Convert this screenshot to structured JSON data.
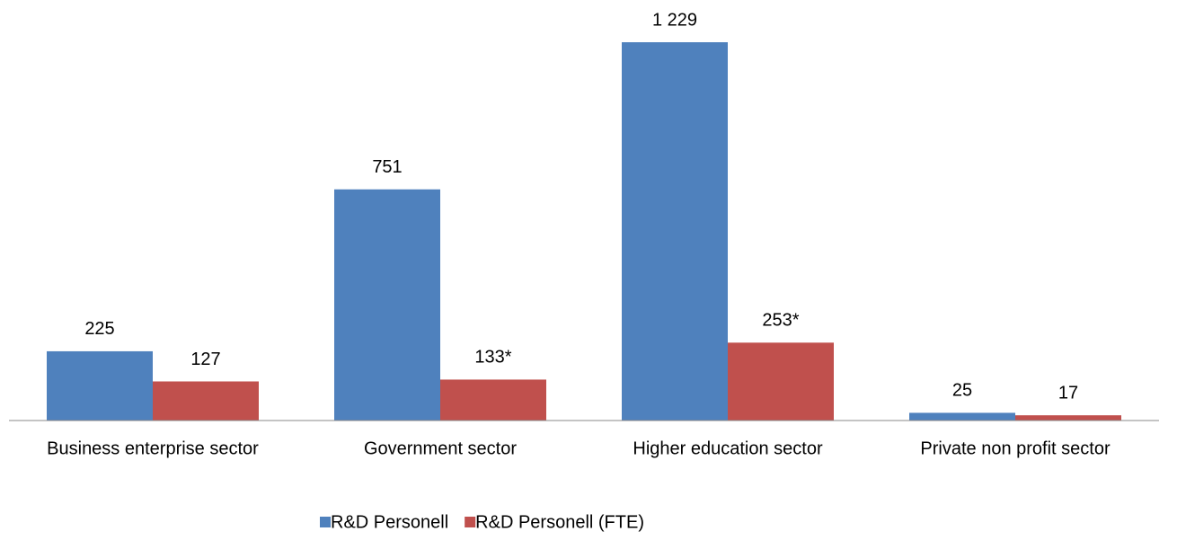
{
  "chart_data": {
    "type": "bar",
    "categories": [
      "Business enterprise sector",
      "Government sector",
      "Higher education sector",
      "Private non profit sector"
    ],
    "series": [
      {
        "name": "R&D Personell",
        "color": "#4f81bd",
        "values": [
          225,
          751,
          1229,
          25
        ],
        "value_labels": [
          "225",
          "751",
          "1 229",
          "25"
        ]
      },
      {
        "name": "R&D Personell (FTE)",
        "color": "#c0504d",
        "values": [
          127,
          133,
          253,
          17
        ],
        "value_labels": [
          "127",
          "133*",
          "253*",
          "17"
        ]
      }
    ],
    "legend": "bottom"
  }
}
